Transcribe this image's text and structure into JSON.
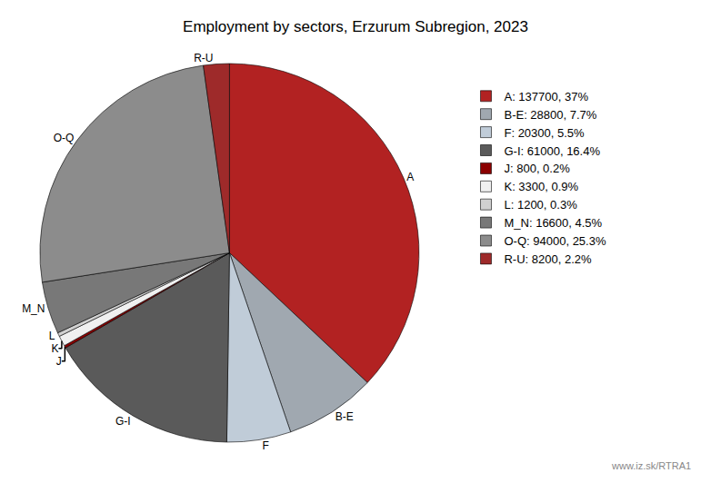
{
  "chart_data": {
    "type": "pie",
    "title": "Employment by sectors, Erzurum Subregion, 2023",
    "categories": [
      "A",
      "B-E",
      "F",
      "G-I",
      "J",
      "K",
      "L",
      "M_N",
      "O-Q",
      "R-U"
    ],
    "values": [
      137700,
      28800,
      20300,
      61000,
      800,
      3300,
      1200,
      16600,
      94000,
      8200
    ],
    "colors": [
      "#b22222",
      "#a0a8b0",
      "#c0ccd8",
      "#5a5a5a",
      "#8b0000",
      "#f0f0f0",
      "#d0d0d0",
      "#787878",
      "#8c8c8c",
      "#9e2a2a"
    ],
    "legend_labels": [
      "A: 137700, 37%",
      "B-E: 28800, 7.7%",
      "F: 20300, 5.5%",
      "G-I: 61000, 16.4%",
      "J: 800, 0.2%",
      "K: 3300, 0.9%",
      "L: 1200, 0.3%",
      "M_N: 16600, 4.5%",
      "O-Q: 94000, 25.3%",
      "R-U: 8200, 2.2%"
    ],
    "annotations": [
      "www.iz.sk/RTRA1"
    ]
  }
}
